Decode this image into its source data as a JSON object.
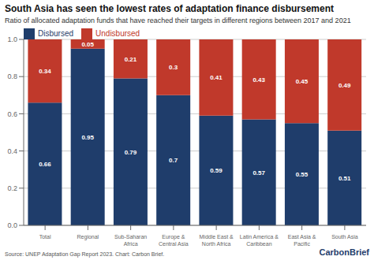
{
  "chart_data": {
    "type": "bar",
    "title": "South Asia has seen the lowest rates of adaptation finance disbursement",
    "subtitle": "Ratio of allocated adaptation funds that have reached their targets in different regions between 2017 and 2021",
    "categories": [
      "Total",
      "Regional",
      "Sub-Saharan\nAfrica",
      "Europe &\nCentral Asia",
      "Middle East &\nNorth Africa",
      "Latin America &\nCaribbean",
      "East Asia &\nPacific",
      "South Asia"
    ],
    "series": [
      {
        "name": "Disbursed",
        "color": "#1f3d6b",
        "values": [
          0.66,
          0.95,
          0.79,
          0.7,
          0.59,
          0.57,
          0.55,
          0.51
        ]
      },
      {
        "name": "Undisbursed",
        "color": "#c0392b",
        "values": [
          0.34,
          0.05,
          0.21,
          0.3,
          0.41,
          0.43,
          0.45,
          0.49
        ]
      }
    ],
    "stacked": true,
    "data_labels": true,
    "grid": true,
    "legend": "upper left",
    "ylim": [
      0,
      1
    ],
    "yticks": [
      {
        "value": 0,
        "label": "0.0"
      },
      0.2,
      0.4,
      0.6,
      0.8,
      {
        "value": 1,
        "label": "1.0"
      }
    ],
    "annotations": [
      "Source: UNEP Adaptation Gap Report 2023. Chart: Carbon Brief.",
      "CarbonBrief"
    ]
  }
}
